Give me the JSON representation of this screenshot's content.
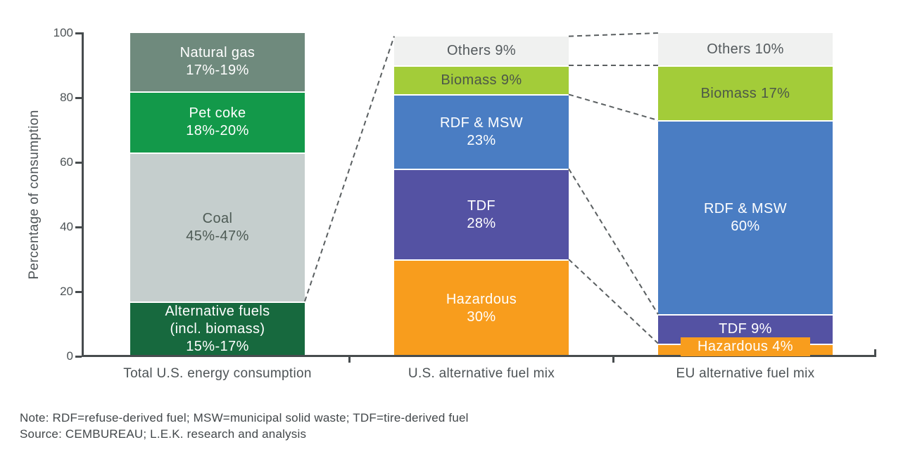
{
  "chart_data": {
    "type": "bar",
    "stacked": true,
    "ylabel": "Percentage of consumption",
    "ylim": [
      0,
      100
    ],
    "yticks": [
      0,
      20,
      40,
      60,
      80,
      100
    ],
    "grid": false,
    "legend": "none (labels inside segments)",
    "axis_color": "#474c4e",
    "connector_color": "#5a5f61",
    "bars": [
      {
        "category": "Total U.S. energy consumption",
        "segments": [
          {
            "name": "Alternative fuels (incl. biomass)",
            "value": 17,
            "value_label": "15%-17%",
            "lines": [
              "Alternative fuels",
              "(incl. biomass)",
              "15%-17%"
            ],
            "color": "#17693e",
            "text_color": "#ffffff"
          },
          {
            "name": "Coal",
            "value": 46,
            "value_label": "45%-47%",
            "lines": [
              "Coal",
              "45%-47%"
            ],
            "color": "#c5cecd",
            "text_color": "#4e5b55"
          },
          {
            "name": "Pet coke",
            "value": 19,
            "value_label": "18%-20%",
            "lines": [
              "Pet coke",
              "18%-20%"
            ],
            "color": "#13994a",
            "text_color": "#ffffff"
          },
          {
            "name": "Natural gas",
            "value": 18,
            "value_label": "17%-19%",
            "lines": [
              "Natural gas",
              "17%-19%"
            ],
            "color": "#6f8a7d",
            "text_color": "#ffffff"
          }
        ]
      },
      {
        "category": "U.S. alternative fuel mix",
        "segments": [
          {
            "name": "Hazardous",
            "value": 30,
            "value_label": "30%",
            "lines": [
              "Hazardous",
              "30%"
            ],
            "color": "#f89d1d",
            "text_color": "#ffffff"
          },
          {
            "name": "TDF",
            "value": 28,
            "value_label": "28%",
            "lines": [
              "TDF",
              "28%"
            ],
            "color": "#5452a3",
            "text_color": "#ffffff"
          },
          {
            "name": "RDF & MSW",
            "value": 23,
            "value_label": "23%",
            "lines": [
              "RDF & MSW",
              "23%"
            ],
            "color": "#4a7dc3",
            "text_color": "#ffffff"
          },
          {
            "name": "Biomass",
            "value": 9,
            "value_label": "9%",
            "lines": [
              "Biomass 9%"
            ],
            "color": "#a3cc39",
            "text_color": "#4c5748"
          },
          {
            "name": "Others",
            "value": 9,
            "value_label": "9%",
            "lines": [
              "Others 9%"
            ],
            "color": "#f0f1f0",
            "text_color": "#53595c"
          }
        ]
      },
      {
        "category": "EU alternative fuel mix",
        "segments": [
          {
            "name": "Hazardous",
            "value": 4,
            "value_label": "4%",
            "lines": [],
            "overlay_label": "Hazardous 4%",
            "color": "#f89d1d",
            "text_color": "#ffffff"
          },
          {
            "name": "TDF",
            "value": 9,
            "value_label": "9%",
            "lines": [
              "TDF 9%"
            ],
            "color": "#5452a3",
            "text_color": "#ffffff"
          },
          {
            "name": "RDF & MSW",
            "value": 60,
            "value_label": "60%",
            "lines": [
              "RDF & MSW",
              "60%"
            ],
            "color": "#4a7dc3",
            "text_color": "#ffffff"
          },
          {
            "name": "Biomass",
            "value": 17,
            "value_label": "17%",
            "lines": [
              "Biomass 17%"
            ],
            "color": "#a3cc39",
            "text_color": "#4c5748"
          },
          {
            "name": "Others",
            "value": 10,
            "value_label": "10%",
            "lines": [
              "Others 10%"
            ],
            "color": "#f0f1f0",
            "text_color": "#53595c"
          }
        ]
      }
    ],
    "connectors": [
      {
        "from_bar": 0,
        "from_level": 17,
        "to_bar": 1,
        "to_level": "top"
      },
      {
        "from_bar": 1,
        "from_level": "top",
        "to_bar": 2,
        "to_level": "top"
      },
      {
        "from_bar": 1,
        "from_level": 90,
        "to_bar": 2,
        "to_level": 90
      },
      {
        "from_bar": 1,
        "from_level": 81,
        "to_bar": 2,
        "to_level": 73
      },
      {
        "from_bar": 1,
        "from_level": 58,
        "to_bar": 2,
        "to_level": 13
      },
      {
        "from_bar": 1,
        "from_level": 30,
        "to_bar": 2,
        "to_level": 4
      }
    ]
  },
  "notes": {
    "note": "Note: RDF=refuse-derived fuel; MSW=municipal solid waste; TDF=tire-derived fuel",
    "source": "Source: CEMBUREAU; L.E.K. research and analysis"
  }
}
